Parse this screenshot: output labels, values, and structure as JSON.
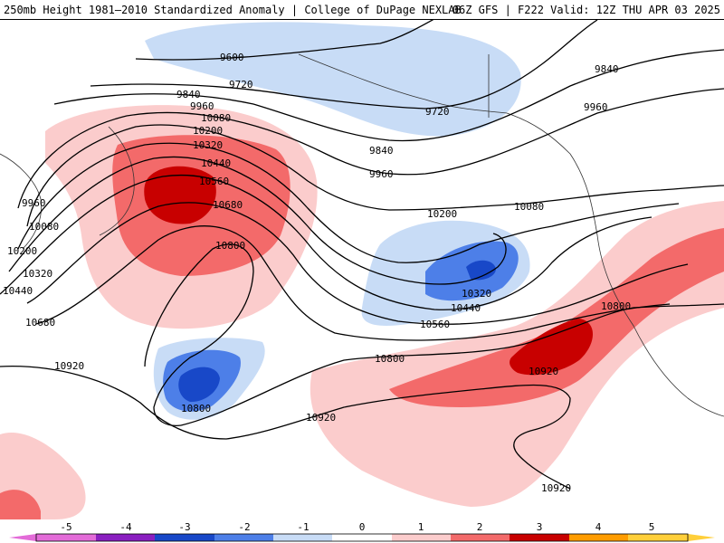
{
  "header": {
    "left_title": "250mb Height 1981–2010 Standardized Anomaly | College of DuPage NEXLAB",
    "right_title": "06Z GFS | F222 Valid: 12Z THU APR 03 2025"
  },
  "colors": {
    "neg5": "#e36bd8",
    "neg4": "#8a1fc0",
    "neg3": "#1848c8",
    "neg2": "#4d7fe8",
    "neg1": "#c8dcf6",
    "neutral": "#ffffff",
    "pos1": "#fbcccc",
    "pos2": "#f36a6a",
    "pos3": "#c80000",
    "pos4": "#ff9c00",
    "pos5": "#ffcf3a"
  },
  "colorbar": {
    "labels": [
      "-5",
      "-4",
      "-3",
      "-2",
      "-1",
      "0",
      "1",
      "2",
      "3",
      "4",
      "5"
    ]
  },
  "contour_labels": [
    {
      "text": "9600"
    },
    {
      "text": "9720"
    },
    {
      "text": "9720"
    },
    {
      "text": "9840"
    },
    {
      "text": "9840"
    },
    {
      "text": "9840"
    },
    {
      "text": "9960"
    },
    {
      "text": "9960"
    },
    {
      "text": "9960"
    },
    {
      "text": "9960"
    },
    {
      "text": "10080"
    },
    {
      "text": "10080"
    },
    {
      "text": "10080"
    },
    {
      "text": "10200"
    },
    {
      "text": "10200"
    },
    {
      "text": "10200"
    },
    {
      "text": "10320"
    },
    {
      "text": "10320"
    },
    {
      "text": "10320"
    },
    {
      "text": "10440"
    },
    {
      "text": "10440"
    },
    {
      "text": "10440"
    },
    {
      "text": "10560"
    },
    {
      "text": "10560"
    },
    {
      "text": "10680"
    },
    {
      "text": "10680"
    },
    {
      "text": "10800"
    },
    {
      "text": "10800"
    },
    {
      "text": "10800"
    },
    {
      "text": "10800"
    },
    {
      "text": "10920"
    },
    {
      "text": "10920"
    },
    {
      "text": "10920"
    },
    {
      "text": "10920"
    }
  ]
}
